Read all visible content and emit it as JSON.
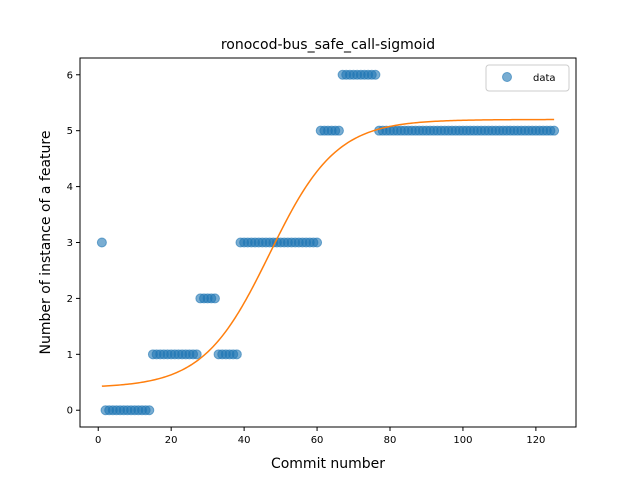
{
  "chart_data": {
    "type": "scatter",
    "title": "ronocod-bus_safe_call-sigmoid",
    "xlabel": "Commit number",
    "ylabel": "Number of instance of a feature",
    "xlim": [
      -5,
      131
    ],
    "ylim": [
      -0.3,
      6.3
    ],
    "xticks": [
      0,
      20,
      40,
      60,
      80,
      100,
      120
    ],
    "yticks": [
      0,
      1,
      2,
      3,
      4,
      5,
      6
    ],
    "grid": false,
    "legend_position": "top-right",
    "series": [
      {
        "name": "data",
        "kind": "scatter",
        "color": "#1f77b4",
        "x": [
          1,
          2,
          3,
          4,
          5,
          6,
          7,
          8,
          9,
          10,
          11,
          12,
          13,
          14,
          15,
          16,
          17,
          18,
          19,
          20,
          21,
          22,
          23,
          24,
          25,
          26,
          27,
          28,
          29,
          30,
          31,
          32,
          33,
          34,
          35,
          36,
          37,
          38,
          39,
          40,
          41,
          42,
          43,
          44,
          45,
          46,
          47,
          48,
          49,
          50,
          51,
          52,
          53,
          54,
          55,
          56,
          57,
          58,
          59,
          60,
          61,
          62,
          63,
          64,
          65,
          66,
          67,
          68,
          69,
          70,
          71,
          72,
          73,
          74,
          75,
          76,
          77,
          78,
          79,
          80,
          81,
          82,
          83,
          84,
          85,
          86,
          87,
          88,
          89,
          90,
          91,
          92,
          93,
          94,
          95,
          96,
          97,
          98,
          99,
          100,
          101,
          102,
          103,
          104,
          105,
          106,
          107,
          108,
          109,
          110,
          111,
          112,
          113,
          114,
          115,
          116,
          117,
          118,
          119,
          120,
          121,
          122,
          123,
          124,
          125
        ],
        "y": [
          3,
          0,
          0,
          0,
          0,
          0,
          0,
          0,
          0,
          0,
          0,
          0,
          0,
          0,
          1,
          1,
          1,
          1,
          1,
          1,
          1,
          1,
          1,
          1,
          1,
          1,
          1,
          2,
          2,
          2,
          2,
          2,
          1,
          1,
          1,
          1,
          1,
          1,
          3,
          3,
          3,
          3,
          3,
          3,
          3,
          3,
          3,
          3,
          3,
          3,
          3,
          3,
          3,
          3,
          3,
          3,
          3,
          3,
          3,
          3,
          5,
          5,
          5,
          5,
          5,
          5,
          6,
          6,
          6,
          6,
          6,
          6,
          6,
          6,
          6,
          6,
          5,
          5,
          5,
          5,
          5,
          5,
          5,
          5,
          5,
          5,
          5,
          5,
          5,
          5,
          5,
          5,
          5,
          5,
          5,
          5,
          5,
          5,
          5,
          5,
          5,
          5,
          5,
          5,
          5,
          5,
          5,
          5,
          5,
          5,
          5,
          5,
          5,
          5,
          5,
          5,
          5,
          5,
          5,
          5,
          5,
          5,
          5,
          5,
          5
        ]
      },
      {
        "kind": "line",
        "color": "#ff7f0e",
        "sigmoid": {
          "lower": 0.4,
          "upper": 5.2,
          "midpoint": 47,
          "rate": 0.11
        },
        "x_range": [
          1,
          125
        ]
      }
    ]
  }
}
